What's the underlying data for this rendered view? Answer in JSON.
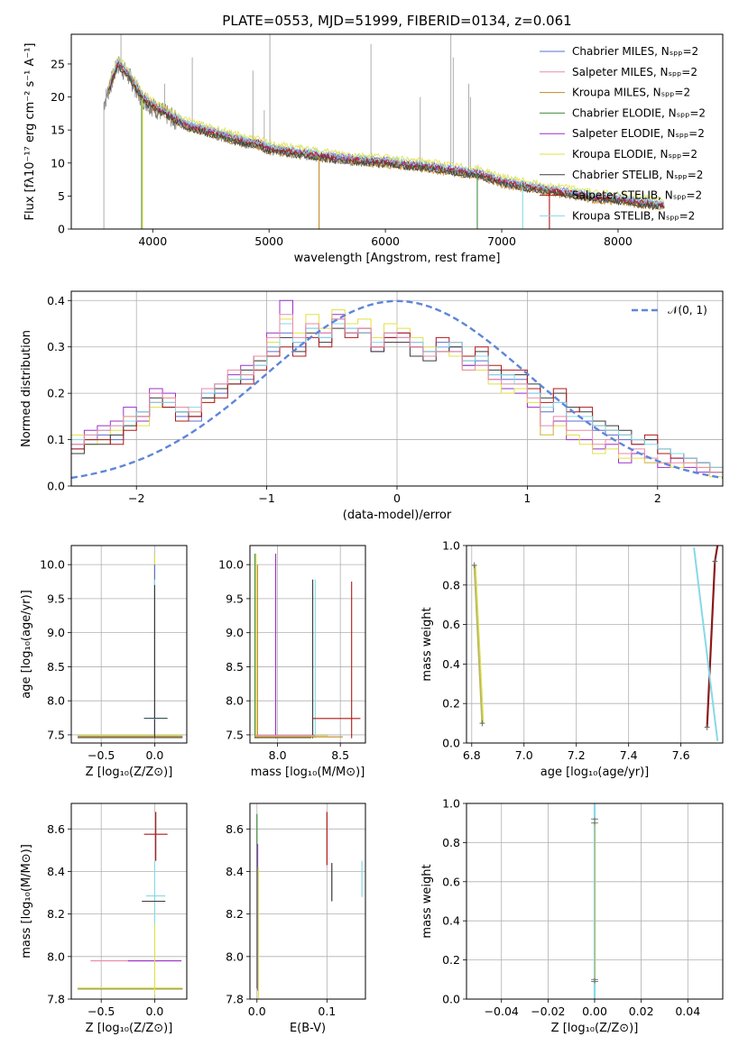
{
  "palette": [
    "#5a6fd1",
    "#e88aa6",
    "#c28a28",
    "#3f8c3f",
    "#9b30c9",
    "#e0e044",
    "#3a3a3a",
    "#b01818",
    "#86d9e6"
  ],
  "chart_data": [
    {
      "id": "spectrum",
      "type": "line",
      "title": "PLATE=0553, MJD=51999, FIBERID=0134, z=0.061",
      "xlabel": "wavelength [Angstrom, rest frame]",
      "ylabel": "Flux [fλ10⁻¹⁷ erg cm⁻² s⁻¹ A⁻¹]",
      "xlim": [
        3300,
        8900
      ],
      "ylim": [
        0,
        29.5
      ],
      "xticks": [
        "4000",
        "5000",
        "6000",
        "7000",
        "8000"
      ],
      "yticks": [
        "0",
        "5",
        "10",
        "15",
        "20",
        "25"
      ],
      "grid": false,
      "legend_position": "upper right",
      "legend": [
        "Chabrier MILES, Nₛₚₚ=2",
        "Salpeter MILES, Nₛₚₚ=2",
        "Kroupa MILES, Nₛₚₚ=2",
        "Chabrier ELODIE, Nₛₚₚ=2",
        "Salpeter ELODIE, Nₛₚₚ=2",
        "Kroupa ELODIE, Nₛₚₚ=2",
        "Chabrier STELIB, Nₛₚₚ=2",
        "Salpeter STELIB, Nₛₚₚ=2",
        "Kroupa STELIB, Nₛₚₚ=2"
      ],
      "observed_x": [
        3580,
        3700,
        3800,
        3900,
        4000,
        4100,
        4200,
        4300,
        4400,
        4500,
        4600,
        4700,
        4800,
        4900,
        5000,
        5200,
        5400,
        5600,
        5800,
        6000,
        6200,
        6400,
        6600,
        6800,
        7000,
        7200,
        7400,
        7600,
        7800,
        8000,
        8200,
        8400
      ],
      "observed_y": [
        19,
        25,
        23,
        20,
        18.5,
        17.5,
        16.5,
        15.5,
        15,
        14.5,
        14,
        13.5,
        13,
        12.8,
        12,
        11.5,
        11,
        10.5,
        10.2,
        10,
        9.5,
        9.2,
        8.6,
        8.2,
        7,
        6.3,
        5.7,
        5.2,
        4.6,
        4.3,
        3.8,
        3.4
      ],
      "model_offsets": [
        0,
        0.4,
        -0.3,
        0.2,
        0.5,
        1.0,
        -0.2,
        0.3,
        0.6
      ]
    },
    {
      "id": "residuals",
      "type": "step",
      "xlabel": "(data-model)/error",
      "ylabel": "Normed distribution",
      "xlim": [
        -2.5,
        2.5
      ],
      "ylim": [
        0,
        0.42
      ],
      "xticks": [
        "−2",
        "−1",
        "0",
        "1",
        "2"
      ],
      "yticks": [
        "0.0",
        "0.1",
        "0.2",
        "0.3",
        "0.4"
      ],
      "grid": true,
      "legend": [
        "𝒩(0, 1)"
      ],
      "reference_curve": "normal(0,1)",
      "series": [
        {
          "name": "Chabrier MILES",
          "values": [
            0.08,
            0.1,
            0.11,
            0.1,
            0.14,
            0.15,
            0.2,
            0.18,
            0.15,
            0.14,
            0.19,
            0.2,
            0.22,
            0.23,
            0.26,
            0.29,
            0.33,
            0.3,
            0.34,
            0.32,
            0.36,
            0.34,
            0.34,
            0.3,
            0.33,
            0.32,
            0.3,
            0.29,
            0.31,
            0.3,
            0.26,
            0.27,
            0.24,
            0.23,
            0.23,
            0.2,
            0.16,
            0.18,
            0.14,
            0.14,
            0.12,
            0.11,
            0.1,
            0.09,
            0.1,
            0.07,
            0.07,
            0.06,
            0.05,
            0.03
          ]
        },
        {
          "name": "Salpeter ELODIE",
          "values": [
            0.09,
            0.12,
            0.13,
            0.14,
            0.17,
            0.14,
            0.21,
            0.2,
            0.16,
            0.15,
            0.2,
            0.22,
            0.24,
            0.26,
            0.28,
            0.33,
            0.4,
            0.31,
            0.35,
            0.33,
            0.37,
            0.33,
            0.34,
            0.29,
            0.32,
            0.33,
            0.31,
            0.28,
            0.3,
            0.29,
            0.26,
            0.26,
            0.23,
            0.21,
            0.2,
            0.17,
            0.11,
            0.14,
            0.1,
            0.1,
            0.08,
            0.09,
            0.05,
            0.07,
            0.05,
            0.04,
            0.06,
            0.04,
            0.03,
            0.03
          ]
        },
        {
          "name": "Kroupa ELODIE",
          "values": [
            0.11,
            0.09,
            0.1,
            0.12,
            0.15,
            0.13,
            0.17,
            0.19,
            0.17,
            0.16,
            0.18,
            0.21,
            0.23,
            0.24,
            0.27,
            0.31,
            0.36,
            0.33,
            0.37,
            0.34,
            0.38,
            0.35,
            0.36,
            0.32,
            0.35,
            0.34,
            0.32,
            0.3,
            0.29,
            0.28,
            0.25,
            0.25,
            0.22,
            0.2,
            0.21,
            0.18,
            0.11,
            0.13,
            0.11,
            0.09,
            0.07,
            0.08,
            0.06,
            0.06,
            0.05,
            0.05,
            0.04,
            0.05,
            0.04,
            0.02
          ]
        },
        {
          "name": "Chabrier STELIB",
          "values": [
            0.07,
            0.09,
            0.09,
            0.11,
            0.13,
            0.16,
            0.19,
            0.17,
            0.16,
            0.15,
            0.19,
            0.21,
            0.22,
            0.25,
            0.27,
            0.3,
            0.32,
            0.29,
            0.33,
            0.31,
            0.34,
            0.33,
            0.33,
            0.29,
            0.31,
            0.31,
            0.28,
            0.27,
            0.29,
            0.3,
            0.27,
            0.29,
            0.25,
            0.24,
            0.24,
            0.22,
            0.19,
            0.2,
            0.17,
            0.16,
            0.14,
            0.13,
            0.12,
            0.1,
            0.1,
            0.08,
            0.07,
            0.06,
            0.05,
            0.03
          ]
        },
        {
          "name": "Salpeter STELIB",
          "values": [
            0.08,
            0.1,
            0.1,
            0.09,
            0.12,
            0.15,
            0.18,
            0.17,
            0.14,
            0.15,
            0.18,
            0.19,
            0.22,
            0.22,
            0.25,
            0.28,
            0.3,
            0.28,
            0.32,
            0.3,
            0.35,
            0.32,
            0.33,
            0.3,
            0.32,
            0.33,
            0.3,
            0.29,
            0.32,
            0.31,
            0.28,
            0.3,
            0.26,
            0.25,
            0.25,
            0.21,
            0.18,
            0.21,
            0.16,
            0.17,
            0.13,
            0.12,
            0.11,
            0.09,
            0.11,
            0.07,
            0.06,
            0.06,
            0.05,
            0.04
          ]
        },
        {
          "name": "Kroupa STELIB",
          "values": [
            0.1,
            0.11,
            0.12,
            0.13,
            0.14,
            0.16,
            0.18,
            0.18,
            0.16,
            0.17,
            0.2,
            0.22,
            0.23,
            0.24,
            0.26,
            0.3,
            0.35,
            0.31,
            0.34,
            0.32,
            0.35,
            0.34,
            0.33,
            0.31,
            0.33,
            0.32,
            0.31,
            0.29,
            0.3,
            0.31,
            0.27,
            0.28,
            0.24,
            0.24,
            0.22,
            0.2,
            0.17,
            0.18,
            0.15,
            0.15,
            0.13,
            0.12,
            0.11,
            0.1,
            0.09,
            0.08,
            0.07,
            0.06,
            0.05,
            0.04
          ]
        },
        {
          "name": "Salpeter MILES",
          "values": [
            0.09,
            0.11,
            0.12,
            0.13,
            0.15,
            0.15,
            0.2,
            0.19,
            0.17,
            0.16,
            0.21,
            0.22,
            0.25,
            0.24,
            0.28,
            0.32,
            0.37,
            0.32,
            0.35,
            0.33,
            0.36,
            0.33,
            0.34,
            0.3,
            0.33,
            0.32,
            0.3,
            0.28,
            0.29,
            0.29,
            0.25,
            0.26,
            0.23,
            0.22,
            0.22,
            0.19,
            0.13,
            0.15,
            0.12,
            0.12,
            0.09,
            0.1,
            0.07,
            0.08,
            0.06,
            0.05,
            0.05,
            0.05,
            0.04,
            0.03
          ]
        }
      ]
    },
    {
      "id": "age-vs-Z",
      "type": "errorbar",
      "xlabel": "Z [log₁₀(Z/Z⊙)]",
      "ylabel": "age  [log₁₀(age/yr)]",
      "xlim": [
        -0.78,
        0.3
      ],
      "ylim": [
        7.38,
        10.28
      ],
      "xticks": [
        "−0.5",
        "0.0"
      ],
      "yticks": [
        "7.5",
        "8.0",
        "8.5",
        "9.0",
        "9.5",
        "10.0"
      ],
      "grid": true
    },
    {
      "id": "age-vs-mass",
      "type": "errorbar",
      "xlabel": "mass [log₁₀(M/M⊙)]",
      "ylabel": "",
      "xlim": [
        7.78,
        8.7
      ],
      "ylim": [
        7.38,
        10.28
      ],
      "xticks": [
        "8.0",
        "8.5"
      ],
      "yticks": [
        "7.5",
        "8.0",
        "8.5",
        "9.0",
        "9.5",
        "10.0"
      ],
      "grid": true
    },
    {
      "id": "weight-vs-age",
      "type": "line",
      "xlabel": "age  [log₁₀(age/yr)]",
      "ylabel": "mass weight",
      "xlim": [
        6.78,
        7.76
      ],
      "ylim": [
        0,
        1
      ],
      "xticks": [
        "6.8",
        "7.0",
        "7.2",
        "7.4",
        "7.6"
      ],
      "yticks": [
        "0.0",
        "0.2",
        "0.4",
        "0.6",
        "0.8",
        "1.0"
      ],
      "grid": true
    },
    {
      "id": "mass-vs-Z",
      "type": "errorbar",
      "xlabel": "Z [log₁₀(Z/Z⊙)]",
      "ylabel": "mass [log₁₀(M/M⊙)]",
      "xlim": [
        -0.78,
        0.3
      ],
      "ylim": [
        7.8,
        8.72
      ],
      "xticks": [
        "−0.5",
        "0.0"
      ],
      "yticks": [
        "7.8",
        "8.0",
        "8.2",
        "8.4",
        "8.6"
      ],
      "grid": true
    },
    {
      "id": "mass-vs-ebv",
      "type": "errorbar",
      "xlabel": "E(B-V)",
      "ylabel": "",
      "xlim": [
        -0.01,
        0.155
      ],
      "ylim": [
        7.8,
        8.72
      ],
      "xticks": [
        "0.0",
        "0.1"
      ],
      "yticks": [
        "7.8",
        "8.0",
        "8.2",
        "8.4",
        "8.6"
      ],
      "grid": true
    },
    {
      "id": "weight-vs-Z",
      "type": "line",
      "xlabel": "Z [log₁₀(Z/Z⊙)]",
      "ylabel": "mass weight",
      "xlim": [
        -0.055,
        0.055
      ],
      "ylim": [
        0,
        1
      ],
      "xticks": [
        "−0.04",
        "−0.02",
        "0.00",
        "0.02",
        "0.04"
      ],
      "yticks": [
        "0.0",
        "0.2",
        "0.4",
        "0.6",
        "0.8",
        "1.0"
      ],
      "grid": true
    }
  ]
}
